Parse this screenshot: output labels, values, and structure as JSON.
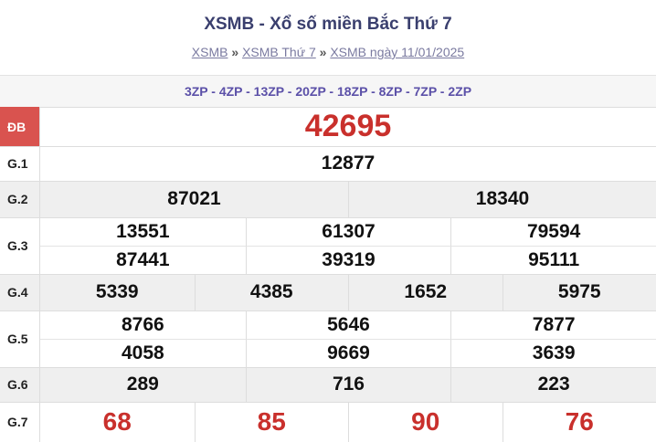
{
  "header": {
    "title": "XSMB - Xổ số miền Bắc Thứ 7",
    "breadcrumbs": [
      "XSMB",
      "XSMB Thứ 7",
      "XSMB ngày 11/01/2025"
    ],
    "separator": "»"
  },
  "codes": "3ZP - 4ZP - 13ZP - 20ZP - 18ZP - 8ZP - 7ZP - 2ZP",
  "prizes": [
    {
      "label": "ĐB",
      "rows": [
        [
          "42695"
        ]
      ]
    },
    {
      "label": "G.1",
      "rows": [
        [
          "12877"
        ]
      ]
    },
    {
      "label": "G.2",
      "rows": [
        [
          "87021",
          "18340"
        ]
      ]
    },
    {
      "label": "G.3",
      "rows": [
        [
          "13551",
          "61307",
          "79594"
        ],
        [
          "87441",
          "39319",
          "95111"
        ]
      ]
    },
    {
      "label": "G.4",
      "rows": [
        [
          "5339",
          "4385",
          "1652",
          "5975"
        ]
      ]
    },
    {
      "label": "G.5",
      "rows": [
        [
          "8766",
          "5646",
          "7877"
        ],
        [
          "4058",
          "9669",
          "3639"
        ]
      ]
    },
    {
      "label": "G.6",
      "rows": [
        [
          "289",
          "716",
          "223"
        ]
      ]
    },
    {
      "label": "G.7",
      "rows": [
        [
          "68",
          "85",
          "90",
          "76"
        ]
      ]
    }
  ]
}
